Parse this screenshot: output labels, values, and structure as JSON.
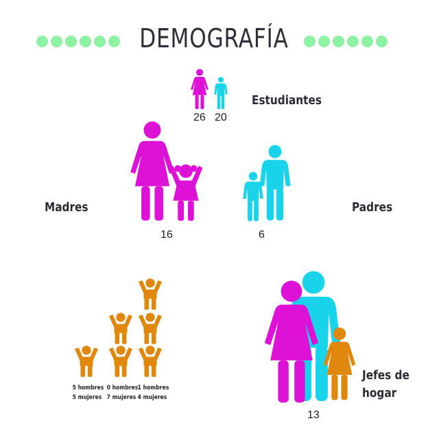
{
  "title": "DEMOGRAFÍA",
  "colors": {
    "female": "#dd12d6",
    "male": "#19d3ea",
    "child": "#e0880e",
    "dots": "#8ef2a4"
  },
  "estudiantes": {
    "label": "Estudiantes",
    "mujeres": "26",
    "hombres": "20"
  },
  "madres": {
    "label": "Madres",
    "count": "16"
  },
  "padres": {
    "label": "Padres",
    "count": "6"
  },
  "hijos": {
    "groups": [
      {
        "hombres": "5 hombres",
        "mujeres": "5 mujeres"
      },
      {
        "hombres": "0 hombres",
        "mujeres": "7 mujeres"
      },
      {
        "hombres": "1 hombres",
        "mujeres": "4 mujeres"
      }
    ]
  },
  "jefes_hogar": {
    "label_line1": "Jefes de",
    "label_line2": "hogar",
    "count": "13"
  }
}
